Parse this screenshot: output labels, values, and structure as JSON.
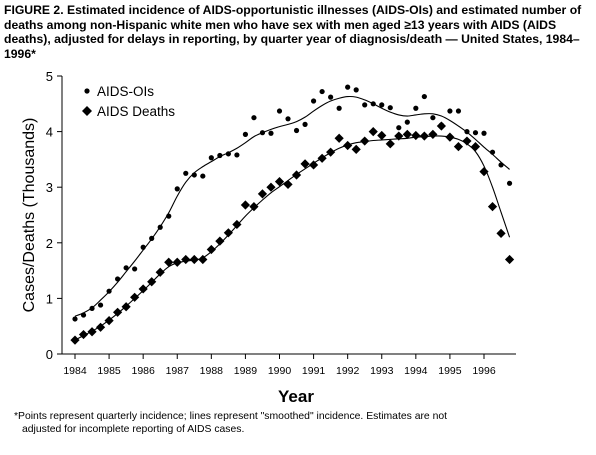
{
  "figure": {
    "title": "FIGURE 2. Estimated incidence of AIDS-opportunistic illnesses (AIDS-OIs) and estimated number of deaths among non-Hispanic white men who have sex with men aged ≥13 years with AIDS (AIDS deaths), adjusted for delays in reporting, by quarter year of diagnosis/death — United States, 1984–1996*",
    "footnote_line1": "*Points represent quarterly incidence; lines represent \"smoothed\" incidence. Estimates are not",
    "footnote_line2": "adjusted for incomplete reporting of AIDS cases."
  },
  "chart_data": {
    "type": "scatter",
    "xlabel": "Year",
    "ylabel": "Cases/Deaths (Thousands)",
    "xlim": [
      1984,
      1997
    ],
    "ylim": [
      0,
      5
    ],
    "x_ticks": [
      1984,
      1985,
      1986,
      1987,
      1988,
      1989,
      1990,
      1991,
      1992,
      1993,
      1994,
      1995,
      1996
    ],
    "y_ticks": [
      0,
      1,
      2,
      3,
      4,
      5
    ],
    "grid": false,
    "legend_position": "top-left",
    "colors": {
      "ink": "#000000"
    },
    "x": [
      1984.0,
      1984.25,
      1984.5,
      1984.75,
      1985.0,
      1985.25,
      1985.5,
      1985.75,
      1986.0,
      1986.25,
      1986.5,
      1986.75,
      1987.0,
      1987.25,
      1987.5,
      1987.75,
      1988.0,
      1988.25,
      1988.5,
      1988.75,
      1989.0,
      1989.25,
      1989.5,
      1989.75,
      1990.0,
      1990.25,
      1990.5,
      1990.75,
      1991.0,
      1991.25,
      1991.5,
      1991.75,
      1992.0,
      1992.25,
      1992.5,
      1992.75,
      1993.0,
      1993.25,
      1993.5,
      1993.75,
      1994.0,
      1994.25,
      1994.5,
      1994.75,
      1995.0,
      1995.25,
      1995.5,
      1995.75,
      1996.0,
      1996.25,
      1996.5,
      1996.75
    ],
    "series": [
      {
        "name": "AIDS-OIs",
        "marker": "circle",
        "points": [
          0.63,
          0.7,
          0.82,
          0.88,
          1.13,
          1.35,
          1.55,
          1.53,
          1.92,
          2.08,
          2.28,
          2.48,
          2.97,
          3.25,
          3.22,
          3.2,
          3.53,
          3.57,
          3.6,
          3.58,
          3.95,
          4.25,
          3.98,
          3.97,
          4.37,
          4.23,
          4.02,
          4.13,
          4.55,
          4.72,
          4.62,
          4.42,
          4.8,
          4.75,
          4.48,
          4.5,
          4.48,
          4.43,
          4.07,
          4.17,
          4.42,
          4.63,
          4.25,
          4.12,
          4.37,
          4.37,
          4.0,
          3.98,
          3.97,
          3.63,
          3.4,
          3.07
        ],
        "smoothed": [
          0.68,
          0.74,
          0.83,
          0.97,
          1.12,
          1.29,
          1.48,
          1.67,
          1.87,
          2.07,
          2.29,
          2.54,
          2.84,
          3.09,
          3.26,
          3.37,
          3.46,
          3.55,
          3.62,
          3.7,
          3.8,
          3.91,
          3.98,
          4.04,
          4.09,
          4.13,
          4.18,
          4.26,
          4.37,
          4.47,
          4.55,
          4.6,
          4.63,
          4.62,
          4.57,
          4.5,
          4.42,
          4.35,
          4.3,
          4.28,
          4.3,
          4.32,
          4.32,
          4.28,
          4.2,
          4.1,
          3.99,
          3.86,
          3.72,
          3.59,
          3.45,
          3.32
        ]
      },
      {
        "name": "AIDS Deaths",
        "marker": "diamond",
        "points": [
          0.25,
          0.35,
          0.4,
          0.48,
          0.6,
          0.75,
          0.85,
          1.02,
          1.17,
          1.3,
          1.47,
          1.65,
          1.65,
          1.7,
          1.7,
          1.7,
          1.88,
          2.03,
          2.18,
          2.33,
          2.68,
          2.65,
          2.88,
          3.0,
          3.1,
          3.05,
          3.22,
          3.42,
          3.4,
          3.52,
          3.63,
          3.88,
          3.75,
          3.68,
          3.83,
          4.0,
          3.93,
          3.78,
          3.92,
          3.95,
          3.93,
          3.92,
          3.95,
          4.1,
          3.9,
          3.73,
          3.83,
          3.73,
          3.28,
          2.65,
          2.17,
          1.7
        ],
        "smoothed": [
          0.25,
          0.33,
          0.41,
          0.5,
          0.61,
          0.73,
          0.86,
          1.0,
          1.14,
          1.29,
          1.44,
          1.57,
          1.64,
          1.67,
          1.69,
          1.73,
          1.84,
          1.98,
          2.14,
          2.31,
          2.48,
          2.63,
          2.77,
          2.9,
          3.01,
          3.12,
          3.23,
          3.33,
          3.43,
          3.53,
          3.62,
          3.7,
          3.76,
          3.8,
          3.82,
          3.84,
          3.85,
          3.86,
          3.87,
          3.88,
          3.9,
          3.91,
          3.92,
          3.92,
          3.9,
          3.86,
          3.78,
          3.64,
          3.38,
          3.0,
          2.55,
          2.1
        ]
      }
    ]
  }
}
